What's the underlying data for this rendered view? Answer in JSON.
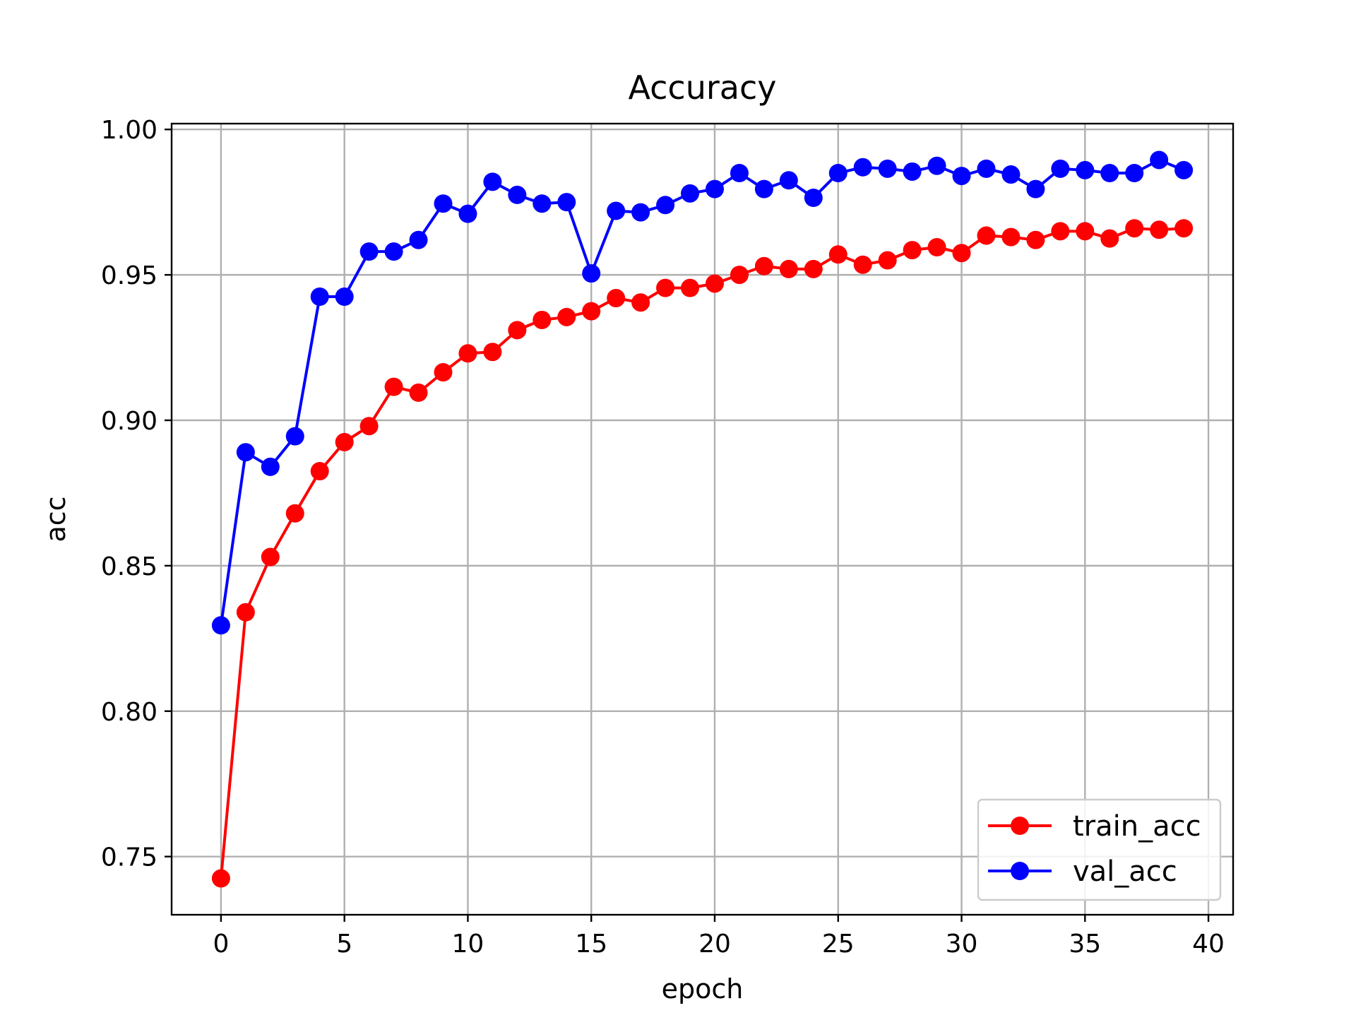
{
  "chart_data": {
    "type": "line",
    "title": "Accuracy",
    "xlabel": "epoch",
    "ylabel": "acc",
    "xlim": [
      -2,
      41
    ],
    "ylim": [
      0.73,
      1.002
    ],
    "xticks": [
      0,
      5,
      10,
      15,
      20,
      25,
      30,
      35,
      40
    ],
    "xtick_labels": [
      "0",
      "5",
      "10",
      "15",
      "20",
      "25",
      "30",
      "35",
      "40"
    ],
    "yticks": [
      0.75,
      0.8,
      0.85,
      0.9,
      0.95,
      1.0
    ],
    "ytick_labels": [
      "0.75",
      "0.80",
      "0.85",
      "0.90",
      "0.95",
      "1.00"
    ],
    "grid": true,
    "legend_position": "lower-right",
    "x": [
      0,
      1,
      2,
      3,
      4,
      5,
      6,
      7,
      8,
      9,
      10,
      11,
      12,
      13,
      14,
      15,
      16,
      17,
      18,
      19,
      20,
      21,
      22,
      23,
      24,
      25,
      26,
      27,
      28,
      29,
      30,
      31,
      32,
      33,
      34,
      35,
      36,
      37,
      38,
      39
    ],
    "series": [
      {
        "name": "train_acc",
        "color": "#ff0000",
        "marker": "circle",
        "values": [
          0.7425,
          0.834,
          0.853,
          0.868,
          0.8825,
          0.8925,
          0.898,
          0.9115,
          0.9095,
          0.9165,
          0.923,
          0.9235,
          0.931,
          0.9345,
          0.9355,
          0.9375,
          0.942,
          0.9405,
          0.9455,
          0.9455,
          0.947,
          0.95,
          0.953,
          0.952,
          0.952,
          0.957,
          0.9535,
          0.955,
          0.9585,
          0.9595,
          0.9575,
          0.9635,
          0.963,
          0.962,
          0.965,
          0.965,
          0.9625,
          0.966,
          0.9655,
          0.966
        ]
      },
      {
        "name": "val_acc",
        "color": "#0000ff",
        "marker": "circle",
        "values": [
          0.8295,
          0.889,
          0.884,
          0.8945,
          0.9425,
          0.9425,
          0.958,
          0.958,
          0.962,
          0.9745,
          0.971,
          0.982,
          0.9775,
          0.9745,
          0.975,
          0.9505,
          0.972,
          0.9715,
          0.974,
          0.978,
          0.9795,
          0.985,
          0.9795,
          0.9825,
          0.9765,
          0.985,
          0.987,
          0.9865,
          0.9855,
          0.9875,
          0.984,
          0.9865,
          0.9845,
          0.9795,
          0.9865,
          0.986,
          0.985,
          0.985,
          0.9895,
          0.986
        ]
      }
    ]
  }
}
